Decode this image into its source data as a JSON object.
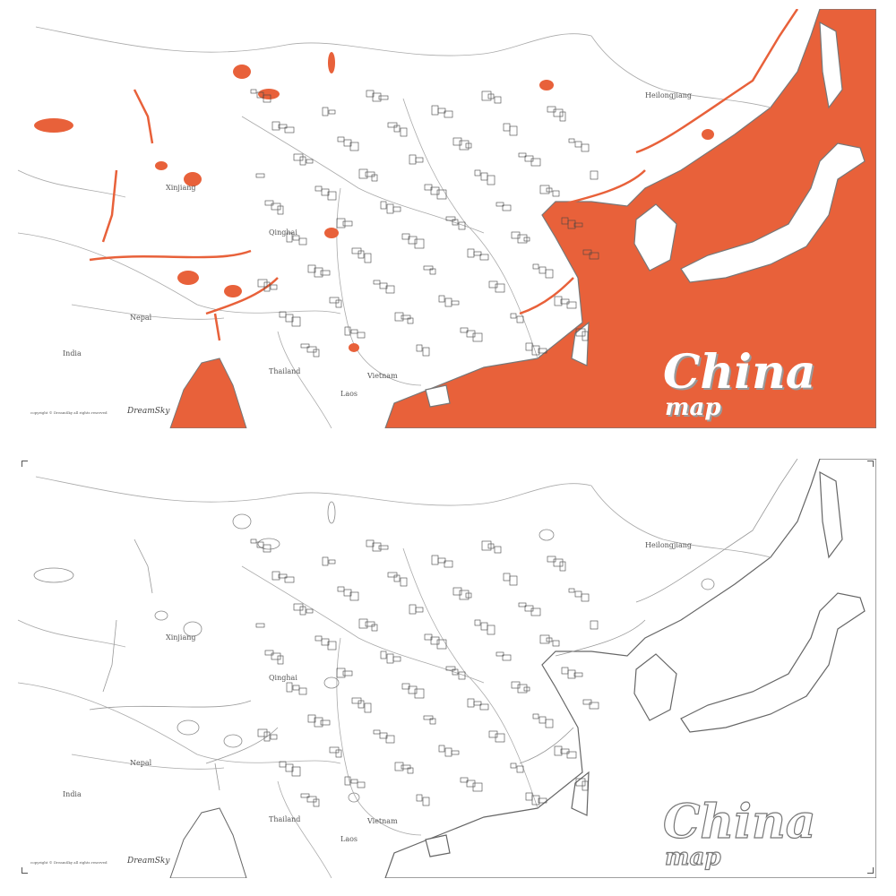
{
  "colors": {
    "sea": "#E8613A",
    "land": "#ffffff",
    "border": "#888888"
  },
  "panels": [
    {
      "variant": "colored",
      "title": "China",
      "subtitle": "map",
      "brand": "DreamSky",
      "copyright": "copyright © DreamSky all rights reserved"
    },
    {
      "variant": "outline",
      "title": "China",
      "subtitle": "map",
      "brand": "DreamSky",
      "copyright": "copyright © DreamSky all rights reserved"
    }
  ],
  "labels": {
    "india": "India",
    "thailand": "Thailand",
    "xinjiang": "Xinjiang",
    "heilongjiang": "Heilongjiang",
    "vietnam": "Vietnam",
    "laos": "Laos",
    "nepal": "Nepal",
    "qinghai": "Qinghai"
  }
}
